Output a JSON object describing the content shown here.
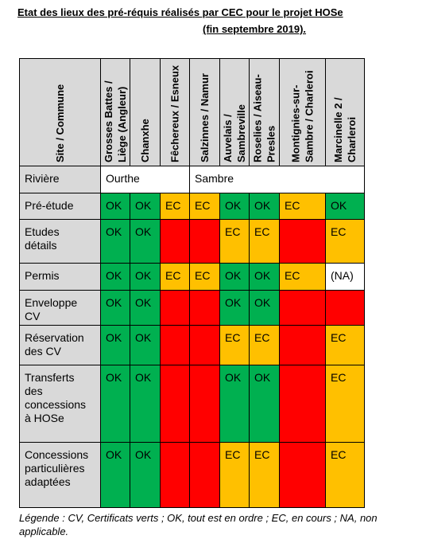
{
  "header": {
    "title": "Etat des lieux des pré-réquis réalisés par CEC pour le projet HOSe",
    "subtitle": "(fin septembre 2019)."
  },
  "table": {
    "columns": [
      "Site / Commune",
      "Grosses Battes / Liège (Angleur)",
      "Chanxhe",
      "Fêchereux / Esneux",
      "Salzinnes / Namur",
      "Auvelais / Sambreville",
      "Roselies / Aiseau-Presles",
      "Montignies-sur-Sambre / Charleroi",
      "Marcinelle 2 / Charleroi"
    ],
    "rows": [
      {
        "label": "Rivière",
        "cells": [
          {
            "text": "Ourthe",
            "span": 3,
            "color": "#ffffff"
          },
          {
            "text": "Sambre",
            "span": 5,
            "color": "#ffffff"
          }
        ]
      },
      {
        "label": "Pré-étude",
        "cells": [
          {
            "text": "OK",
            "color": "#00b050"
          },
          {
            "text": "OK",
            "color": "#00b050"
          },
          {
            "text": "EC",
            "color": "#ffc000"
          },
          {
            "text": "EC",
            "color": "#ffc000"
          },
          {
            "text": "OK",
            "color": "#00b050"
          },
          {
            "text": "OK",
            "color": "#00b050"
          },
          {
            "text": "EC",
            "color": "#ffc000"
          },
          {
            "text": "OK",
            "color": "#00b050"
          }
        ]
      },
      {
        "label": "Etudes détails",
        "cells": [
          {
            "text": "OK",
            "color": "#00b050"
          },
          {
            "text": "OK",
            "color": "#00b050"
          },
          {
            "color": "#ff0000"
          },
          {
            "color": "#ff0000"
          },
          {
            "text": "EC",
            "color": "#ffc000"
          },
          {
            "text": "EC",
            "color": "#ffc000"
          },
          {
            "color": "#ff0000"
          },
          {
            "text": "EC",
            "color": "#ffc000"
          }
        ]
      },
      {
        "label": "Permis",
        "cells": [
          {
            "text": "OK",
            "color": "#00b050"
          },
          {
            "text": "OK",
            "color": "#00b050"
          },
          {
            "text": "EC",
            "color": "#ffc000"
          },
          {
            "text": "EC",
            "color": "#ffc000"
          },
          {
            "text": "OK",
            "color": "#00b050"
          },
          {
            "text": "OK",
            "color": "#00b050"
          },
          {
            "text": "EC",
            "color": "#ffc000"
          },
          {
            "text": "(NA)",
            "color": "#ffffff"
          }
        ]
      },
      {
        "label": "Enveloppe CV",
        "cells": [
          {
            "text": "OK",
            "color": "#00b050"
          },
          {
            "text": "OK",
            "color": "#00b050"
          },
          {
            "color": "#ff0000"
          },
          {
            "color": "#ff0000"
          },
          {
            "text": "OK",
            "color": "#00b050"
          },
          {
            "text": "OK",
            "color": "#00b050"
          },
          {
            "color": "#ff0000"
          },
          {
            "color": "#ff0000"
          }
        ]
      },
      {
        "label": "Réservation des CV",
        "cells": [
          {
            "text": "OK",
            "color": "#00b050"
          },
          {
            "text": "OK",
            "color": "#00b050"
          },
          {
            "color": "#ff0000"
          },
          {
            "color": "#ff0000"
          },
          {
            "text": "EC",
            "color": "#ffc000"
          },
          {
            "text": "EC",
            "color": "#ffc000"
          },
          {
            "color": "#ff0000"
          },
          {
            "text": "EC",
            "color": "#ffc000"
          }
        ]
      },
      {
        "label": "Transferts des concessions à HOSe",
        "cells": [
          {
            "text": "OK",
            "color": "#00b050"
          },
          {
            "text": "OK",
            "color": "#00b050"
          },
          {
            "color": "#ff0000"
          },
          {
            "color": "#ff0000"
          },
          {
            "text": "OK",
            "color": "#00b050"
          },
          {
            "text": "OK",
            "color": "#00b050"
          },
          {
            "color": "#ff0000"
          },
          {
            "text": "EC",
            "color": "#ffc000"
          }
        ]
      },
      {
        "label": "Concessions particulières adaptées",
        "cells": [
          {
            "text": "OK",
            "color": "#00b050"
          },
          {
            "text": "OK",
            "color": "#00b050"
          },
          {
            "color": "#ff0000"
          },
          {
            "color": "#ff0000"
          },
          {
            "text": "EC",
            "color": "#ffc000"
          },
          {
            "text": "EC",
            "color": "#ffc000"
          },
          {
            "color": "#ff0000"
          },
          {
            "text": "EC",
            "color": "#ffc000"
          }
        ]
      }
    ]
  },
  "legend": "Légende : CV, Certificats verts ; OK, tout est en ordre ; EC, en cours ; NA, non applicable."
}
